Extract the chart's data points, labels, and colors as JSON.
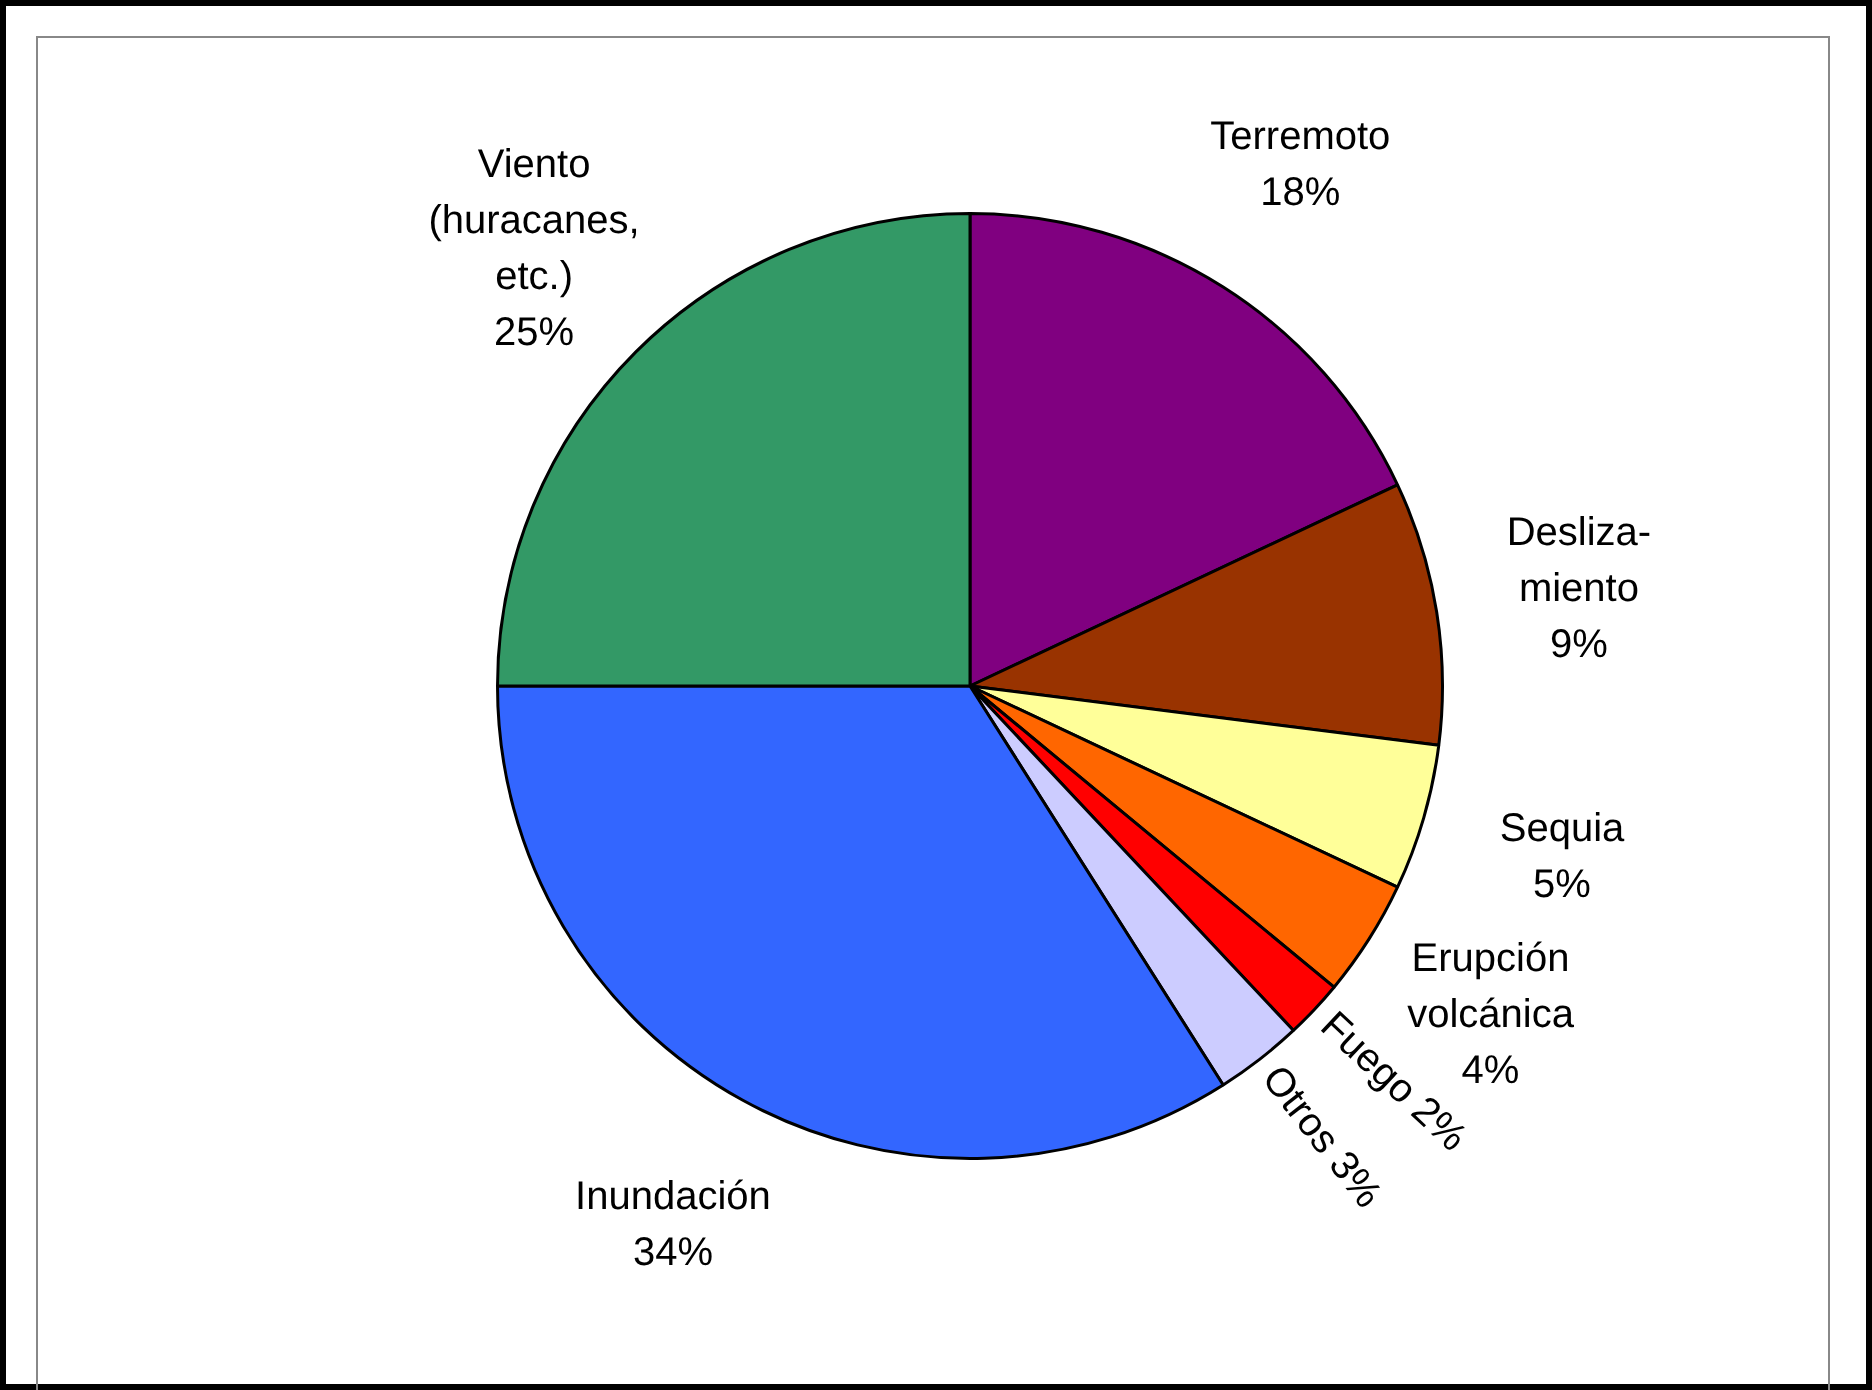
{
  "chart_data": {
    "type": "pie",
    "categories": [
      "Terremoto",
      "Desliza-\nmiento",
      "Sequia",
      "Erupción\nvolcánica",
      "Fuego",
      "Otros",
      "Inundación",
      "Viento\n(huracanes,\netc.)"
    ],
    "values": [
      18,
      9,
      5,
      4,
      2,
      3,
      34,
      25
    ],
    "value_labels": [
      "18%",
      "9%",
      "5%",
      "4%",
      "2%",
      "3%",
      "34%",
      "25%"
    ],
    "colors": [
      "#800080",
      "#993300",
      "#ffff99",
      "#ff6600",
      "#ff0000",
      "#ccccff",
      "#3366ff",
      "#339966"
    ],
    "legend": false
  }
}
